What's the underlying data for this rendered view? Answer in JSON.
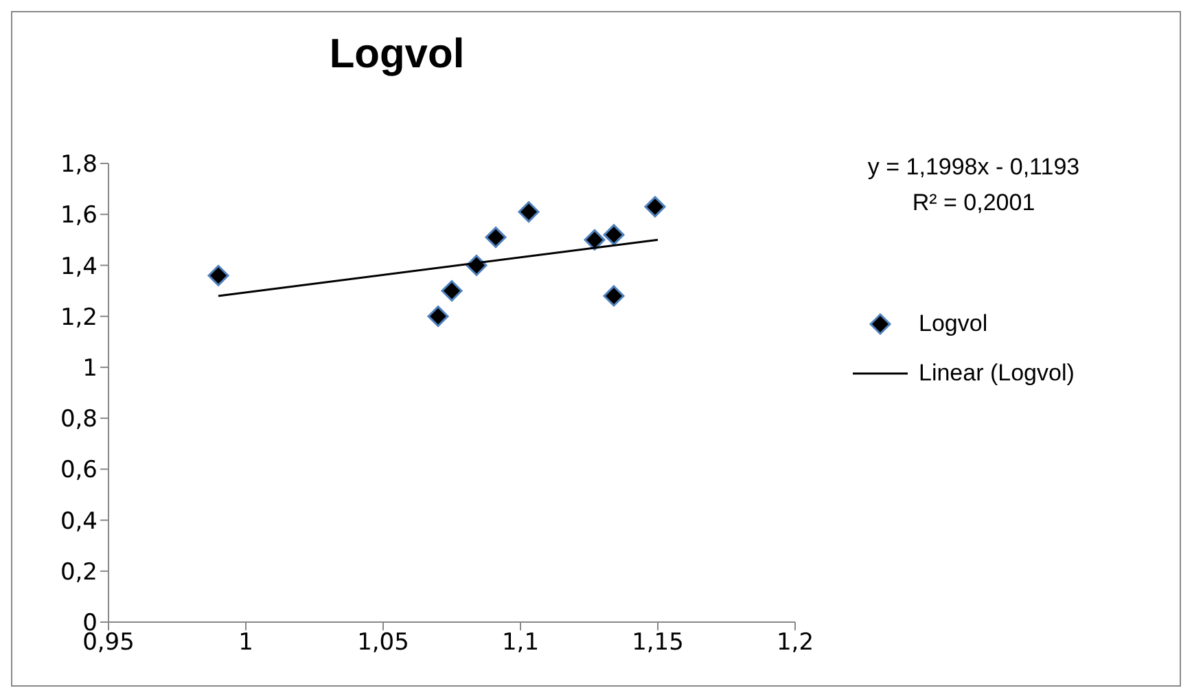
{
  "chart_data": {
    "type": "scatter",
    "title": "Logvol",
    "series": [
      {
        "name": "Logvol",
        "color": "#000000",
        "marker": "diamond",
        "x": [
          0.99,
          1.07,
          1.075,
          1.084,
          1.091,
          1.103,
          1.127,
          1.134,
          1.134,
          1.149
        ],
        "values": [
          1.36,
          1.2,
          1.3,
          1.4,
          1.51,
          1.61,
          1.5,
          1.52,
          1.28,
          1.63
        ]
      },
      {
        "name": "Linear (Logvol)",
        "type": "line",
        "color": "#000000",
        "marker": "none",
        "x": [
          0.99,
          1.15
        ],
        "values": [
          1.28,
          1.5
        ]
      }
    ],
    "xlim": [
      0.95,
      1.2
    ],
    "xticks": [
      {
        "value": 0.95,
        "label": "0,95"
      },
      1,
      {
        "value": 1.05,
        "label": "1,05"
      },
      {
        "value": 1.1,
        "label": "1,1"
      },
      {
        "value": 1.15,
        "label": "1,15"
      },
      {
        "value": 1.2,
        "label": "1,2"
      }
    ],
    "ylim": [
      0,
      1.8
    ],
    "yticks": [
      0,
      {
        "value": 0.2,
        "label": "0,2"
      },
      {
        "value": 0.4,
        "label": "0,4"
      },
      {
        "value": 0.6,
        "label": "0,6"
      },
      {
        "value": 0.8,
        "label": "0,8"
      },
      1,
      {
        "value": 1.2,
        "label": "1,2"
      },
      {
        "value": 1.4,
        "label": "1,4"
      },
      {
        "value": 1.6,
        "label": "1,6"
      },
      {
        "value": 1.8,
        "label": "1,8"
      }
    ],
    "annotations": [
      "y = 1,1998x - 0,1193",
      "R² = 0,2001"
    ],
    "legend": "right",
    "grid": false
  }
}
